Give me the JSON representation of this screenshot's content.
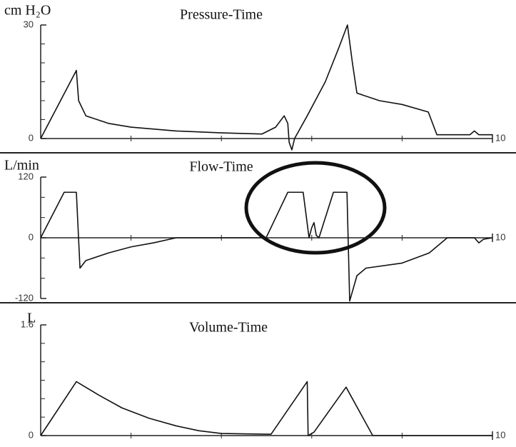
{
  "chart_data": [
    {
      "type": "line",
      "title": "Pressure-Time",
      "y_label": "cm H₂O",
      "color": "#111111",
      "x": [
        0,
        0.79,
        0.84,
        1.0,
        1.5,
        2.0,
        3.0,
        4.0,
        4.9,
        5.2,
        5.39,
        5.47,
        5.5,
        5.56,
        5.62,
        5.9,
        6.3,
        6.6,
        6.79,
        6.9,
        7.0,
        7.5,
        8.0,
        8.58,
        8.77,
        9.5,
        9.6,
        9.7,
        10
      ],
      "values": [
        0,
        18,
        10,
        6,
        4,
        3,
        2,
        1.5,
        1.2,
        3,
        6,
        4,
        -1,
        -3,
        0,
        6,
        15,
        24,
        30,
        20,
        12,
        10,
        9,
        7,
        1,
        1,
        2,
        1,
        1
      ],
      "xlim": [
        0,
        10
      ],
      "xticks": [
        10
      ],
      "ylim": [
        0,
        30
      ],
      "yticks": [
        0,
        30
      ]
    },
    {
      "type": "line",
      "title": "Flow-Time",
      "y_label": "L/min",
      "color": "#111111",
      "x": [
        0,
        0.52,
        0.79,
        0.87,
        1.0,
        1.5,
        2.0,
        2.5,
        3.0,
        4.99,
        5.47,
        5.81,
        5.94,
        6.0,
        6.05,
        6.1,
        6.16,
        6.48,
        6.78,
        6.84,
        7.0,
        7.2,
        8.0,
        8.6,
        9.0,
        9.6,
        9.7,
        9.8,
        10
      ],
      "values": [
        0,
        90,
        90,
        -60,
        -45,
        -30,
        -18,
        -10,
        0,
        0,
        90,
        90,
        0,
        20,
        30,
        5,
        0,
        90,
        90,
        -125,
        -75,
        -60,
        -50,
        -30,
        0,
        0,
        -10,
        -3,
        0
      ],
      "xlim": [
        0,
        10
      ],
      "xticks": [
        10
      ],
      "ylim": [
        -120,
        120
      ],
      "yticks": [
        -120,
        0,
        120
      ]
    },
    {
      "type": "line",
      "title": "Volume-Time",
      "y_label": "L",
      "color": "#111111",
      "x": [
        0,
        0.79,
        1.3,
        1.8,
        2.4,
        3.0,
        3.5,
        4.0,
        5.0,
        5.1,
        5.9,
        5.92,
        6.05,
        6.76,
        7.35,
        10
      ],
      "values": [
        0,
        0.78,
        0.58,
        0.4,
        0.25,
        0.14,
        0.07,
        0.03,
        0.02,
        0.02,
        0.78,
        0,
        0.05,
        0.7,
        0,
        0
      ],
      "xlim": [
        0,
        10
      ],
      "xticks": [
        10
      ],
      "ylim": [
        0,
        1.6
      ],
      "yticks": [
        0,
        1.6
      ]
    }
  ]
}
